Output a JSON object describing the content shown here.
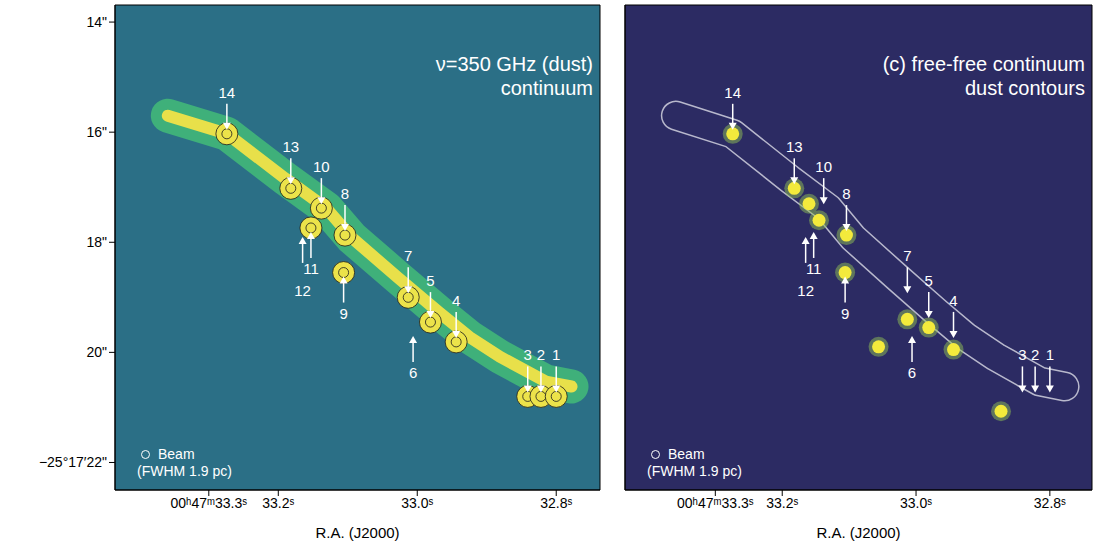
{
  "chart_data": [
    {
      "type": "scatter",
      "title": "ν=350 GHz (dust)",
      "subtitle": "continuum",
      "x_label": "R.A. (J2000)",
      "xlim": [
        33.435,
        32.737
      ],
      "xticks": [
        {
          "value": 33.3,
          "label": "00ʰ47ᵐ33.3ˢ"
        },
        {
          "value": 33.2,
          "label": "33.2ˢ"
        },
        {
          "value": 33.0,
          "label": "33.0ˢ"
        },
        {
          "value": 32.8,
          "label": "32.8ˢ"
        }
      ],
      "ylim": [
        13.69,
        22.5
      ],
      "yticks": [
        {
          "value": 14,
          "label": "14\""
        },
        {
          "value": 16,
          "label": "16\""
        },
        {
          "value": 18,
          "label": "18\""
        },
        {
          "value": 20,
          "label": "20\""
        },
        {
          "value": 22,
          "label": "−25°17′22\""
        }
      ],
      "annotations": [
        "Beam",
        "(FWHM 1.9 pc)"
      ],
      "color": "#ece34a",
      "ridge": {
        "x": [
          33.359,
          33.274,
          33.19,
          33.131,
          33.094,
          33.028,
          32.969,
          32.925,
          32.881,
          32.815,
          32.778
        ],
        "y": [
          15.7,
          16.03,
          16.84,
          17.38,
          17.92,
          18.64,
          19.27,
          19.72,
          20.08,
          20.53,
          20.62
        ]
      },
      "blobs": {
        "x": [
          33.274,
          33.182,
          33.138,
          33.104,
          33.153,
          33.106,
          33.013,
          32.981,
          32.944,
          32.841,
          32.822,
          32.8
        ],
        "y": [
          16.03,
          17.02,
          17.38,
          17.87,
          17.74,
          18.55,
          19.0,
          19.45,
          19.81,
          20.8,
          20.8,
          20.8
        ]
      },
      "sources": [
        {
          "label": "14",
          "x": 33.274,
          "y": 16.03,
          "arrow": "down"
        },
        {
          "label": "13",
          "x": 33.182,
          "y": 17.02,
          "arrow": "down"
        },
        {
          "label": "10",
          "x": 33.138,
          "y": 17.38,
          "arrow": "down"
        },
        {
          "label": "8",
          "x": 33.104,
          "y": 17.87,
          "arrow": "down"
        },
        {
          "label": "11",
          "x": 33.153,
          "y": 17.74,
          "arrow": "up"
        },
        {
          "label": "12",
          "x": 33.165,
          "y": 17.83,
          "arrow": "up"
        },
        {
          "label": "9",
          "x": 33.106,
          "y": 18.55,
          "arrow": "up"
        },
        {
          "label": "7",
          "x": 33.013,
          "y": 19.0,
          "arrow": "down"
        },
        {
          "label": "5",
          "x": 32.981,
          "y": 19.45,
          "arrow": "down"
        },
        {
          "label": "6",
          "x": 33.006,
          "y": 19.63,
          "arrow": "up"
        },
        {
          "label": "4",
          "x": 32.944,
          "y": 19.81,
          "arrow": "down"
        },
        {
          "label": "3",
          "x": 32.841,
          "y": 20.8,
          "arrow": "down"
        },
        {
          "label": "2",
          "x": 32.822,
          "y": 20.8,
          "arrow": "down"
        },
        {
          "label": "1",
          "x": 32.8,
          "y": 20.8,
          "arrow": "down"
        }
      ]
    },
    {
      "type": "scatter",
      "title": "(c) free-free continuum",
      "subtitle": "dust contours",
      "x_label": "R.A. (J2000)",
      "xlim": [
        33.435,
        32.737
      ],
      "xticks": [
        {
          "value": 33.3,
          "label": "00ʰ47ᵐ33.3ˢ"
        },
        {
          "value": 33.2,
          "label": "33.2ˢ"
        },
        {
          "value": 33.0,
          "label": "33.0ˢ"
        },
        {
          "value": 32.8,
          "label": "32.8ˢ"
        }
      ],
      "ylim": [
        13.69,
        22.5
      ],
      "yticks": [
        14,
        16,
        18,
        20,
        22
      ],
      "tick_labels": "x",
      "annotations": [
        "Beam",
        "(FWHM 1.9 pc)"
      ],
      "color": "#f3ea3c",
      "ridge": {
        "x": [
          33.359,
          33.274,
          33.19,
          33.131,
          33.094,
          33.028,
          32.969,
          32.925,
          32.881,
          32.815,
          32.778
        ],
        "y": [
          15.7,
          16.03,
          16.84,
          17.38,
          17.92,
          18.64,
          19.27,
          19.72,
          20.08,
          20.53,
          20.62
        ]
      },
      "blobs": {
        "x": [
          33.274,
          33.182,
          33.16,
          33.145,
          33.104,
          33.106,
          33.013,
          32.981,
          32.944,
          32.873,
          33.056
        ],
        "y": [
          16.03,
          17.02,
          17.3,
          17.6,
          17.87,
          18.55,
          19.4,
          19.55,
          19.95,
          21.07,
          19.9
        ]
      },
      "sources": [
        {
          "label": "14",
          "x": 33.274,
          "y": 16.03,
          "arrow": "down"
        },
        {
          "label": "13",
          "x": 33.182,
          "y": 17.02,
          "arrow": "down"
        },
        {
          "label": "10",
          "x": 33.138,
          "y": 17.38,
          "arrow": "down"
        },
        {
          "label": "8",
          "x": 33.104,
          "y": 17.87,
          "arrow": "down"
        },
        {
          "label": "11",
          "x": 33.153,
          "y": 17.74,
          "arrow": "up"
        },
        {
          "label": "12",
          "x": 33.165,
          "y": 17.83,
          "arrow": "up"
        },
        {
          "label": "9",
          "x": 33.106,
          "y": 18.55,
          "arrow": "up"
        },
        {
          "label": "7",
          "x": 33.013,
          "y": 19.0,
          "arrow": "down"
        },
        {
          "label": "5",
          "x": 32.981,
          "y": 19.45,
          "arrow": "down"
        },
        {
          "label": "6",
          "x": 33.006,
          "y": 19.63,
          "arrow": "up"
        },
        {
          "label": "4",
          "x": 32.944,
          "y": 19.81,
          "arrow": "down"
        },
        {
          "label": "3",
          "x": 32.841,
          "y": 20.8,
          "arrow": "down"
        },
        {
          "label": "2",
          "x": 32.822,
          "y": 20.8,
          "arrow": "down"
        },
        {
          "label": "1",
          "x": 32.8,
          "y": 20.8,
          "arrow": "down"
        }
      ]
    }
  ]
}
